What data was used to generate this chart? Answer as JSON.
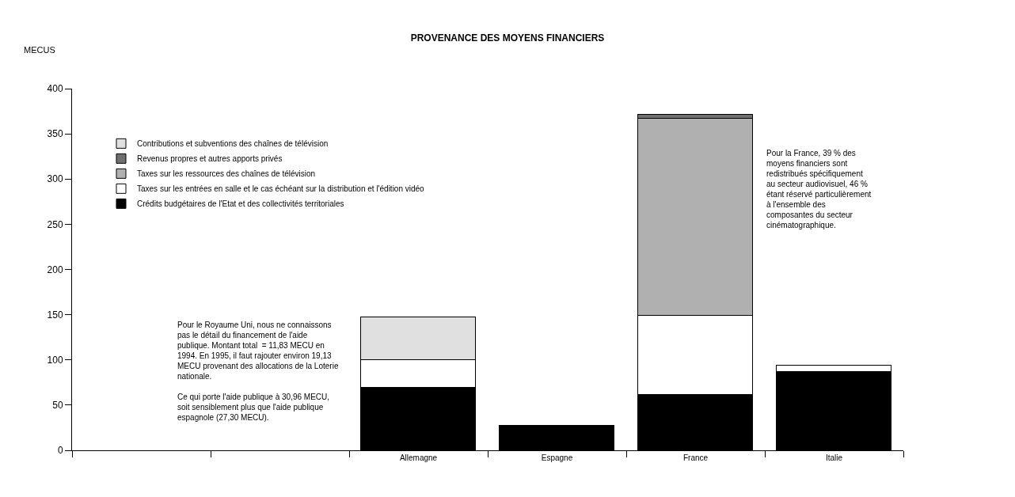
{
  "chart_data": {
    "type": "bar",
    "title": "PROVENANCE DES MOYENS FINANCIERS",
    "ylabel": "MECUS",
    "categories": [
      null,
      null,
      "Allemagne",
      "Espagne",
      "France",
      "Italie"
    ],
    "stacked": true,
    "series": [
      {
        "name": "Crédits budgétaires de l'Etat et des collectivités territoriales",
        "color": "#000000",
        "values": [
          null,
          null,
          69,
          27,
          61,
          87
        ]
      },
      {
        "name": "Taxes sur les entrées en salle et le cas échéant sur la distribution et l'édition vidéo",
        "color": "#ffffff",
        "values": [
          null,
          null,
          31,
          null,
          88,
          7
        ]
      },
      {
        "name": "Taxes sur les ressources des chaînes de télévision",
        "color": "#b0b0b0",
        "values": [
          null,
          null,
          null,
          null,
          218,
          null
        ]
      },
      {
        "name": "Revenus propres et autres apports privés",
        "color": "#707070",
        "values": [
          null,
          null,
          null,
          null,
          4,
          null
        ]
      },
      {
        "name": "Contributions et subventions des chaînes de télévision",
        "color": "#e0e0e0",
        "values": [
          null,
          null,
          47,
          null,
          null,
          null
        ]
      }
    ],
    "ylim": [
      0,
      400
    ],
    "yticks": [
      0,
      50,
      100,
      150,
      200,
      250,
      300,
      350,
      400
    ],
    "legend": "top left",
    "annotations": [
      "Pour le Royaume Uni, nous ne connaissons\npas le détail du financement de l'aide\npublique. Montant total  = 11,83 MECU en\n1994. En 1995, il faut rajouter environ 19,13\nMECU provenant des allocations de la Loterie\nnationale.\n\nCe qui porte l'aide publique à 30,96 MECU,\nsoit sensiblement plus que l'aide publique\nespagnole (27,30 MECU).",
      "Pour la France, 39 % des\nmoyens financiers sont\nredistribués spécifiquement\nau secteur audiovisuel, 46 %\nétant réservé particulièrement\nà l'ensemble des\ncomposantes du secteur\ncinématographique."
    ]
  }
}
